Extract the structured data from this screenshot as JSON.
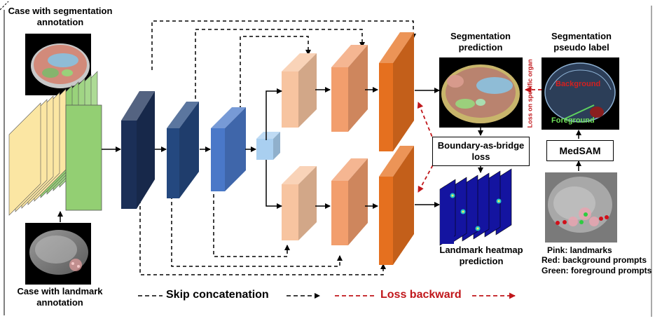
{
  "labels": {
    "case_seg": "Case with segmentation\nannotation",
    "case_landmark": "Case with landmark\nannotation",
    "seg_prediction": "Segmentation\nprediction",
    "seg_pseudo": "Segmentation\npseudo label",
    "loss_specific": "Loss on specific organ",
    "background": "Background",
    "foreground": "Foreground",
    "bridge_loss": "Boundary-as-bridge\nloss",
    "medsam": "MedSAM",
    "landmark_heatmap": "Landmark heatmap\nprediction",
    "notes": [
      "Pink: landmarks",
      "Red: background prompts",
      "Green: foreground prompts"
    ]
  },
  "legend": {
    "skip": "Skip concatenation",
    "loss": "Loss backward"
  },
  "colors": {
    "encoder": [
      "#1b2f57",
      "#24487f",
      "#4a78c8"
    ],
    "bottleneck": "#a9cff0",
    "decoder": [
      "#f7c4a0",
      "#f29e6d",
      "#e5701f"
    ],
    "loss_arrow": "#c0161a",
    "input_yellow": "#fbe6a3",
    "input_green": "#93cf73"
  }
}
